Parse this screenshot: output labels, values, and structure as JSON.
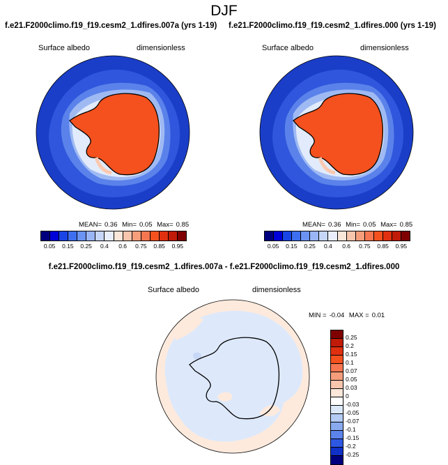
{
  "page": {
    "season": "DJF",
    "panel_left_title": "f.e21.F2000climo.f19_f19.cesm2_1.dfires.007a (yrs 1-19)",
    "panel_right_title": "f.e21.F2000climo.f19_f19.cesm2_1.dfires.000 (yrs 1-19)",
    "diff_title": "f.e21.F2000climo.f19_f19.cesm2_1.dfires.007a - f.e21.F2000climo.f19_f19.cesm2_1.dfires.000",
    "variable": "Surface albedo",
    "units": "dimensionless"
  },
  "chart_data": [
    {
      "type": "heatmap",
      "projection": "south polar stereographic",
      "title": "f.e21.F2000climo.f19_f19.cesm2_1.dfires.007a (yrs 1-19)",
      "field": "Surface albedo",
      "units": "dimensionless",
      "stats": {
        "mean_label": "MEAN=",
        "mean": "0.36",
        "min_label": "Min=",
        "min": "0.05",
        "max_label": "Max=",
        "max": "0.85"
      },
      "colorbar_levels": [
        "0.05",
        "0.15",
        "0.25",
        "0.4",
        "0.6",
        "0.75",
        "0.85",
        "0.95"
      ],
      "colorbar_colors": [
        "#00007f",
        "#0000d9",
        "#1a45e6",
        "#3e6ff0",
        "#6b93f4",
        "#99b5f6",
        "#c6d6f8",
        "#e8eefb",
        "#fbe6da",
        "#f8c5ad",
        "#f69e7c",
        "#f57650",
        "#f4511e",
        "#e03010",
        "#c01a08",
        "#7f0000"
      ]
    },
    {
      "type": "heatmap",
      "projection": "south polar stereographic",
      "title": "f.e21.F2000climo.f19_f19.cesm2_1.dfires.000 (yrs 1-19)",
      "field": "Surface albedo",
      "units": "dimensionless",
      "stats": {
        "mean_label": "MEAN=",
        "mean": "0.36",
        "min_label": "Min=",
        "min": "0.05",
        "max_label": "Max=",
        "max": "0.85"
      },
      "colorbar_levels": [
        "0.05",
        "0.15",
        "0.25",
        "0.4",
        "0.6",
        "0.75",
        "0.85",
        "0.95"
      ],
      "colorbar_colors": [
        "#00007f",
        "#0000d9",
        "#1a45e6",
        "#3e6ff0",
        "#6b93f4",
        "#99b5f6",
        "#c6d6f8",
        "#e8eefb",
        "#fbe6da",
        "#f8c5ad",
        "#f69e7c",
        "#f57650",
        "#f4511e",
        "#e03010",
        "#c01a08",
        "#7f0000"
      ]
    },
    {
      "type": "heatmap",
      "projection": "south polar stereographic",
      "title": "f.e21.F2000climo.f19_f19.cesm2_1.dfires.007a - f.e21.F2000climo.f19_f19.cesm2_1.dfires.000",
      "field": "Surface albedo",
      "units": "dimensionless",
      "stats": {
        "min_label": "MIN =",
        "min": "-0.04",
        "max_label": "MAX =",
        "max": "0.01"
      },
      "colorbar_levels": [
        "0.25",
        "0.2",
        "0.15",
        "0.1",
        "0.07",
        "0.05",
        "0.03",
        "0",
        "-0.03",
        "-0.05",
        "-0.07",
        "-0.1",
        "-0.15",
        "-0.2",
        "-0.25"
      ],
      "colorbar_colors": [
        "#7f0000",
        "#c01a08",
        "#e03010",
        "#f4511e",
        "#f57650",
        "#f69e7c",
        "#f8c5ad",
        "#fbe6da",
        "#ffffff",
        "#dce8f8",
        "#b4cbf4",
        "#8aaaf0",
        "#5c84ec",
        "#2e58e4",
        "#1030c8",
        "#00007f"
      ]
    }
  ],
  "colors": {
    "ocean_low": "#1a3ec8",
    "ice_mid": "#7ea0ee",
    "ice_high": "#dbe6fa",
    "land_high": "#f4511e",
    "diff_neg": "#dde9fb",
    "diff_pos": "#fdeadd",
    "coast": "#000000"
  }
}
